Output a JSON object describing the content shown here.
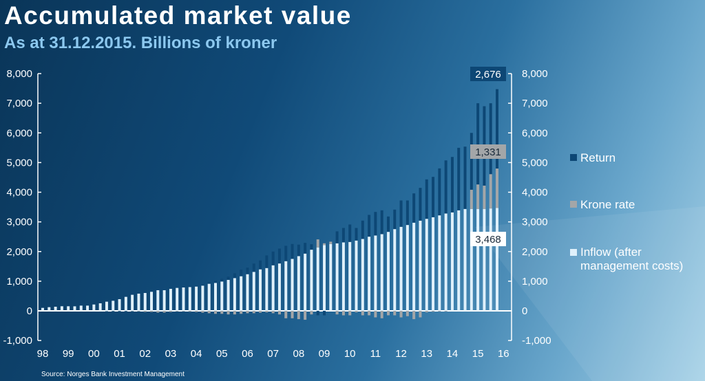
{
  "title": "Accumulated market value",
  "subtitle": "As at 31.12.2015. Billions of kroner",
  "source": "Source: Norges Bank Investment Management",
  "colors": {
    "return": "#0d4775",
    "krone": "#a3a6a8",
    "inflow": "#dff0fb"
  },
  "chart_data": {
    "type": "bar",
    "stacked": true,
    "frequency": "quarterly",
    "title": "Accumulated market value",
    "subtitle": "As at 31.12.2015. Billions of kroner",
    "ylim": [
      -1000,
      8000
    ],
    "y_ticks": [
      "-1,000",
      "0",
      "1,000",
      "2,000",
      "3,000",
      "4,000",
      "5,000",
      "6,000",
      "7,000",
      "8,000"
    ],
    "y_tick_values": [
      -1000,
      0,
      1000,
      2000,
      3000,
      4000,
      5000,
      6000,
      7000,
      8000
    ],
    "x_ticks": [
      "98",
      "99",
      "00",
      "01",
      "02",
      "03",
      "04",
      "05",
      "06",
      "07",
      "08",
      "09",
      "10",
      "11",
      "12",
      "13",
      "14",
      "15",
      "16"
    ],
    "legend_position": "right",
    "grid": false,
    "series": [
      {
        "name": "Return",
        "key": "return",
        "values": [
          0,
          0,
          0,
          0,
          0,
          5,
          5,
          5,
          5,
          0,
          -10,
          -15,
          -20,
          -20,
          -30,
          -30,
          -25,
          -20,
          -20,
          -15,
          -5,
          0,
          10,
          20,
          30,
          40,
          60,
          80,
          90,
          110,
          160,
          220,
          220,
          280,
          300,
          425,
          463,
          502,
          517,
          502,
          386,
          362,
          185,
          -150,
          -150,
          0,
          402,
          486,
          587,
          424,
          617,
          734,
          795,
          803,
          517,
          656,
          888,
          826,
          988,
          1105,
          1328,
          1359,
          1583,
          1791,
          1869,
          2108,
          2101,
          1915,
          2737,
          2676,
          2390,
          2676
        ]
      },
      {
        "name": "Krone rate",
        "key": "krone",
        "values": [
          0,
          0,
          0,
          0,
          0,
          0,
          0,
          0,
          0,
          0,
          -5,
          -10,
          -10,
          -10,
          -15,
          -20,
          -40,
          -40,
          -60,
          -60,
          -40,
          -20,
          -20,
          -30,
          -40,
          -60,
          -80,
          -100,
          -100,
          -120,
          -120,
          -100,
          -80,
          -80,
          -60,
          -50,
          -80,
          -120,
          -250,
          -250,
          -280,
          -300,
          -120,
          270,
          62,
          77,
          -120,
          -150,
          -150,
          -50,
          -150,
          -150,
          -220,
          -250,
          -150,
          -150,
          -220,
          -180,
          -280,
          -220,
          -50,
          -30,
          -20,
          -20,
          0,
          0,
          0,
          649,
          827,
          788,
          1158,
          1331
        ]
      },
      {
        "name": "Inflow (after management costs)",
        "key": "inflow",
        "values": [
          100,
          124,
          139,
          155,
          155,
          155,
          178,
          178,
          217,
          255,
          309,
          340,
          394,
          472,
          541,
          580,
          603,
          642,
          696,
          696,
          742,
          773,
          789,
          804,
          820,
          851,
          913,
          943,
          990,
          1044,
          1106,
          1168,
          1237,
          1315,
          1400,
          1444,
          1537,
          1598,
          1676,
          1753,
          1846,
          1931,
          2062,
          2139,
          2216,
          2255,
          2278,
          2309,
          2324,
          2371,
          2425,
          2502,
          2541,
          2587,
          2664,
          2757,
          2834,
          2896,
          2973,
          3042,
          3104,
          3158,
          3220,
          3282,
          3320,
          3390,
          3436,
          3436,
          3436,
          3436,
          3452,
          3468
        ]
      }
    ],
    "data_labels": [
      {
        "series": "Return",
        "text": "2,676"
      },
      {
        "series": "Krone rate",
        "text": "1,331"
      },
      {
        "series": "Inflow (after management costs)",
        "text": "3,468"
      }
    ]
  }
}
